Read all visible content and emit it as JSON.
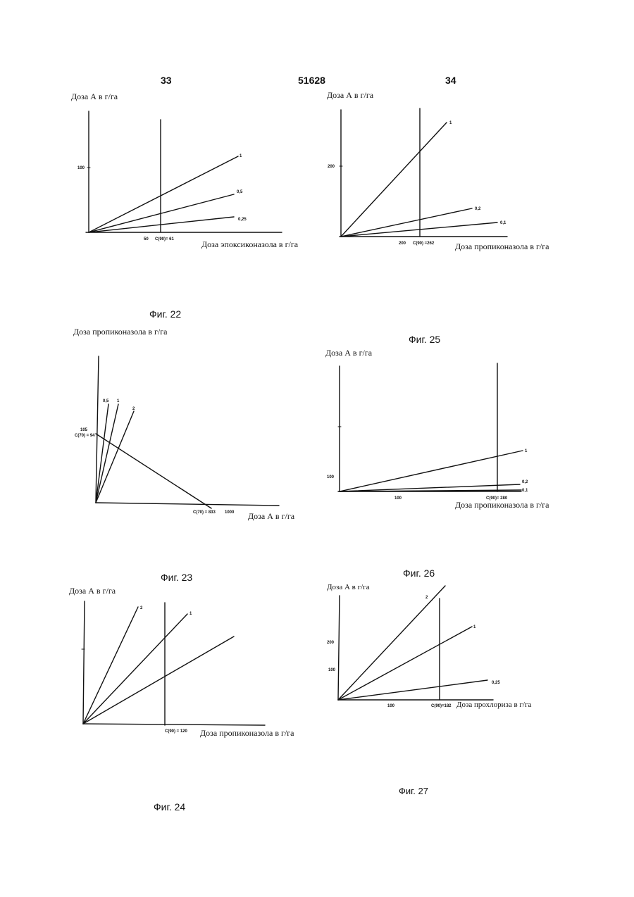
{
  "header": {
    "page_left": "33",
    "doc_number": "51628",
    "page_right": "34"
  },
  "figures": [
    {
      "id": "fig22",
      "caption": "Фиг. 22",
      "ylabel": "Доза А в г/га",
      "xlabel": "Доза эпоксиконазола в г/га",
      "ytick": "100",
      "xtick": "50",
      "marker_label": "C(90)= 61",
      "series": [
        {
          "label": "1"
        },
        {
          "label": "0,5"
        },
        {
          "label": "0,25"
        }
      ]
    },
    {
      "id": "fig25",
      "caption": "Фиг. 25",
      "ylabel": "Доза А в г/га",
      "xlabel": "Доза пропиконазола в г/га",
      "ytick": "200",
      "xtick": "200",
      "marker_label": "C(90) =262",
      "series": [
        {
          "label": "1"
        },
        {
          "label": "0,2"
        },
        {
          "label": "0,1"
        }
      ]
    },
    {
      "id": "fig23",
      "caption": "Фиг. 23",
      "ylabel": "Доза пропиконазола в г/га",
      "xlabel": "Доза А в г/га",
      "ytick": "105",
      "ytick2": "C(70) = 94",
      "xtick": "1000",
      "marker_label": "C(70) = 833",
      "series": [
        {
          "label": "0,5"
        },
        {
          "label": "1"
        },
        {
          "label": "2"
        }
      ]
    },
    {
      "id": "fig26",
      "caption": "Фиг. 26",
      "ylabel": "Доза А в г/га",
      "xlabel": "Доза пропиконазола в г/га",
      "ytick": "100",
      "xtick": "100",
      "marker_label": "C(90)= 280",
      "series": [
        {
          "label": "1"
        },
        {
          "label": "0,2"
        },
        {
          "label": "0,1"
        }
      ]
    },
    {
      "id": "fig24",
      "caption": "Фиг. 24",
      "ylabel": "Доза А в г/га",
      "xlabel": "Доза пропиконазола в г/га",
      "marker_label": "C(90) = 120",
      "series": [
        {
          "label": "2"
        },
        {
          "label": "1"
        }
      ]
    },
    {
      "id": "fig27",
      "caption": "Фиг. 27",
      "ylabel": "Доза А в г/га",
      "xlabel": "Доза прохлориза в г/га",
      "ytick": "200",
      "ytick2": "100",
      "xtick": "100",
      "marker_label": "C(90)=182",
      "series": [
        {
          "label": "2"
        },
        {
          "label": "1"
        },
        {
          "label": "0,25"
        }
      ]
    }
  ]
}
